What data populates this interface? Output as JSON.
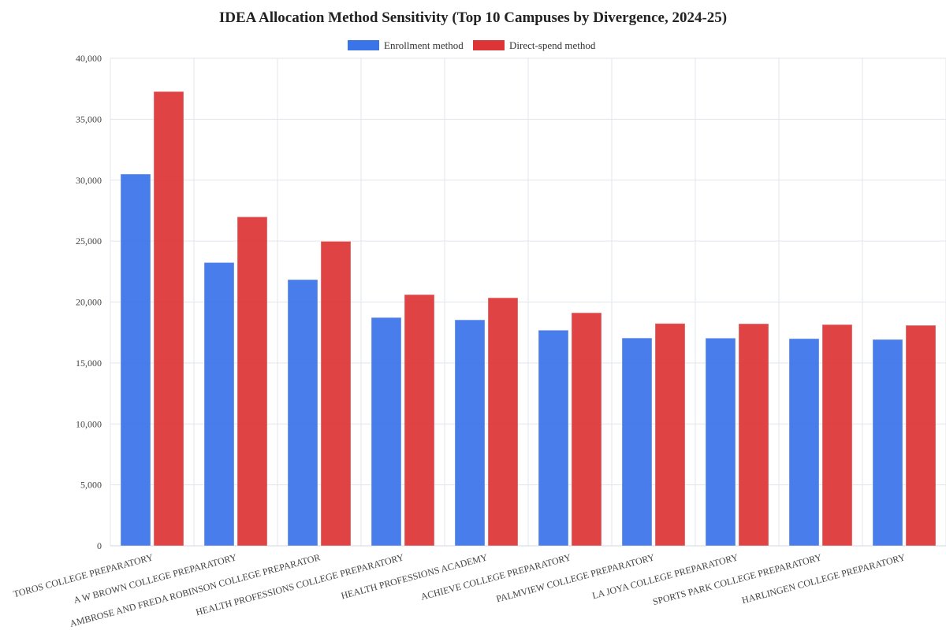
{
  "chart_data": {
    "type": "bar",
    "title": "IDEA Allocation Method Sensitivity (Top 10 Campuses by Divergence, 2024-25)",
    "xlabel": "",
    "ylabel": "",
    "ylim": [
      0,
      40000
    ],
    "yticks": [
      0,
      5000,
      10000,
      15000,
      20000,
      25000,
      30000,
      35000,
      40000
    ],
    "ytick_labels": [
      "0",
      "5,000",
      "10,000",
      "15,000",
      "20,000",
      "25,000",
      "30,000",
      "35,000",
      "40,000"
    ],
    "grid": true,
    "legend_position": "top-center",
    "categories": [
      "TOROS COLLEGE PREPARATORY",
      "A W BROWN COLLEGE PREPARATORY",
      "AMBROSE AND FREDA ROBINSON COLLEGE PREPARATOR",
      "HEALTH PROFESSIONS COLLEGE PREPARATORY",
      "HEALTH PROFESSIONS ACADEMY",
      "ACHIEVE COLLEGE PREPARATORY",
      "PALMVIEW COLLEGE PREPARATORY",
      "LA JOYA COLLEGE PREPARATORY",
      "SPORTS PARK COLLEGE PREPARATORY",
      "HARLINGEN COLLEGE PREPARATORY"
    ],
    "series": [
      {
        "name": "Enrollment method",
        "color": "#3b73e9",
        "values": [
          30500,
          23240,
          21840,
          18730,
          18540,
          17690,
          17050,
          17040,
          17000,
          16930
        ]
      },
      {
        "name": "Direct-spend method",
        "color": "#dd3535",
        "values": [
          37270,
          26990,
          24980,
          20610,
          20350,
          19120,
          18240,
          18220,
          18150,
          18090
        ]
      }
    ]
  }
}
